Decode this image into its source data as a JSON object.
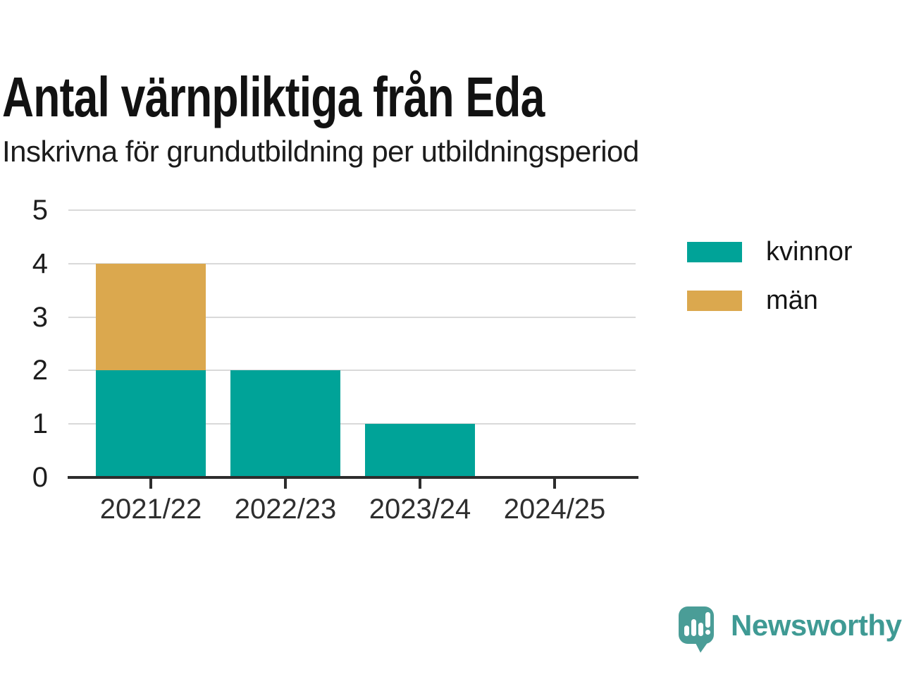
{
  "title": "Antal värnpliktiga från Eda",
  "subtitle": "Inskrivna för grundutbildning per utbildningsperiod",
  "chart_data": {
    "type": "bar",
    "stacked": true,
    "title": "Antal värnpliktiga från Eda",
    "subtitle": "Inskrivna för grundutbildning per utbildningsperiod",
    "categories": [
      "2021/22",
      "2022/23",
      "2023/24",
      "2024/25"
    ],
    "series": [
      {
        "name": "kvinnor",
        "color": "#00a398",
        "values": [
          2,
          2,
          1,
          0
        ]
      },
      {
        "name": "män",
        "color": "#dba84e",
        "values": [
          2,
          0,
          0,
          0
        ]
      }
    ],
    "xlabel": "",
    "ylabel": "",
    "ylim": [
      0,
      5
    ],
    "yticks": [
      "0",
      "1",
      "2",
      "3",
      "4",
      "5"
    ],
    "grid": "horizontal",
    "legend_position": "right"
  },
  "axis_style": {
    "grid_color": "#d9d9d9",
    "axis_color": "#2d2d2d"
  },
  "branding": {
    "logo_text": "Newsworthy",
    "logo_icon": "speech-bubble-bar-chart-icon",
    "logo_color": "#4a9d97"
  }
}
